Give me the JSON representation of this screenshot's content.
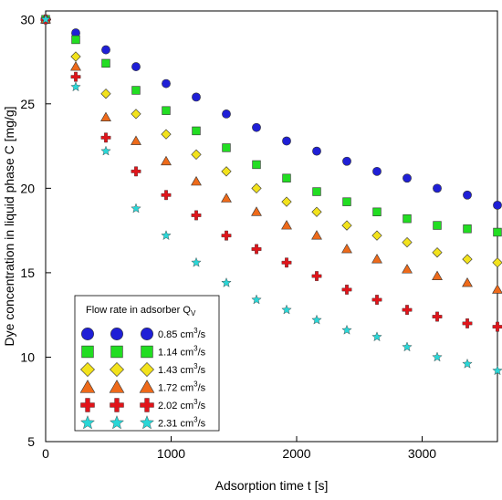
{
  "chart_data": {
    "type": "scatter",
    "xlabel": "Adsorption time t [s]",
    "ylabel": "Dye concentration in liquid phase C [mg/g]",
    "xlim": [
      0,
      3600
    ],
    "ylim": [
      5,
      30.5
    ],
    "xticks": [
      0,
      1000,
      2000,
      3000
    ],
    "yticks": [
      5,
      10,
      15,
      20,
      25,
      30
    ],
    "grid": false,
    "legend": {
      "position": "bottom-left",
      "title_main": "Flow rate in adsorber Q",
      "title_sub": "V"
    },
    "x": [
      0,
      240,
      480,
      720,
      960,
      1200,
      1440,
      1680,
      1920,
      2160,
      2400,
      2640,
      2880,
      3120,
      3360,
      3600
    ],
    "series": [
      {
        "label_value": "0.85 cm",
        "label_sup": "3",
        "label_unit": "/s",
        "marker": "circle",
        "color": "#1f1fd6",
        "values": [
          30,
          29.2,
          28.2,
          27.2,
          26.2,
          25.4,
          24.4,
          23.6,
          22.8,
          22.2,
          21.6,
          21.0,
          20.6,
          20.0,
          19.6,
          19.0
        ]
      },
      {
        "label_value": "1.14 cm",
        "label_sup": "3",
        "label_unit": "/s",
        "marker": "square",
        "color": "#22dd22",
        "values": [
          30,
          28.8,
          27.4,
          25.8,
          24.6,
          23.4,
          22.4,
          21.4,
          20.6,
          19.8,
          19.2,
          18.6,
          18.2,
          17.8,
          17.6,
          17.4
        ]
      },
      {
        "label_value": "1.43 cm",
        "label_sup": "3",
        "label_unit": "/s",
        "marker": "diamond",
        "color": "#f2e21c",
        "values": [
          30,
          27.8,
          25.6,
          24.4,
          23.2,
          22.0,
          21.0,
          20.0,
          19.2,
          18.6,
          17.8,
          17.2,
          16.8,
          16.2,
          15.8,
          15.6
        ]
      },
      {
        "label_value": "1.72 cm",
        "label_sup": "3",
        "label_unit": "/s",
        "marker": "triangle",
        "color": "#ee6a1a",
        "values": [
          30,
          27.2,
          24.2,
          22.8,
          21.6,
          20.4,
          19.4,
          18.6,
          17.8,
          17.2,
          16.4,
          15.8,
          15.2,
          14.8,
          14.4,
          14.0
        ]
      },
      {
        "label_value": "2.02 cm",
        "label_sup": "3",
        "label_unit": "/s",
        "marker": "cross",
        "color": "#e0141a",
        "values": [
          30,
          26.6,
          23.0,
          21.0,
          19.6,
          18.4,
          17.2,
          16.4,
          15.6,
          14.8,
          14.0,
          13.4,
          12.8,
          12.4,
          12.0,
          11.8
        ]
      },
      {
        "label_value": "2.31 cm",
        "label_sup": "3",
        "label_unit": "/s",
        "marker": "star",
        "color": "#2ad6d6",
        "values": [
          30,
          26.0,
          22.2,
          18.8,
          17.2,
          15.6,
          14.4,
          13.4,
          12.8,
          12.2,
          11.6,
          11.2,
          10.6,
          10.0,
          9.6,
          9.2
        ]
      }
    ]
  }
}
